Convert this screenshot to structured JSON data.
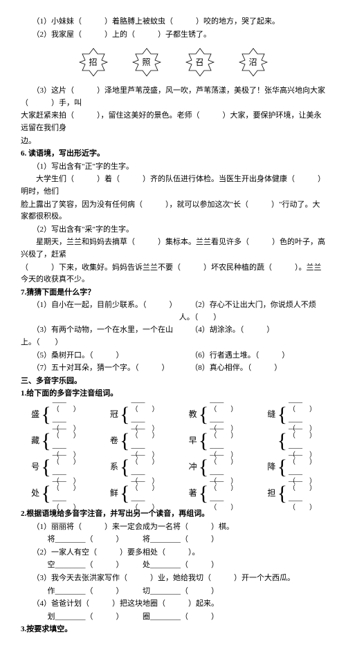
{
  "top_lines": [
    "（1）小妹妹（　　　）着胳膊上被蚊虫（　　　）咬的地方，哭了起来。",
    "（2）我家屋（　　　）上的（　　　）子都生锈了。"
  ],
  "star_chars": [
    "招",
    "照",
    "召",
    "沼"
  ],
  "q3_lines": [
    "（3）这片（　　　）泽地里芦苇茂盛，风一吹，芦苇荡漾，美极了！张华高兴地向大家（　　　）手，叫",
    "大家赶紧来拍（　　　），留住这美好的景色。老师（　　　）大家，要保护环境，让美永远留在我们身",
    "边。"
  ],
  "q6_title": "6. 读语境，写出形近字。",
  "q6_lines": [
    "（1）写出含有\"正\"字的生字。",
    "　　大学生们（　　　）着（　　　）齐的队伍进行体检。当医生开出身体健康（　　　）明时，他们",
    "脸上露出了笑容，因为没有任何病（　　　），就可以参加这次\"长（　　　）\"行动了。大家都很积极。",
    "（2）写出含有\"采\"字的生字。",
    "　　星期天，兰兰和妈妈去摘草（　　　）集标本。兰兰看见许多（　　　）色的叶子，高兴极了，赶紧",
    "（　　　）下来，收集好。妈妈告诉兰兰不要（　　　）坏农民种植的蔬（　　　）。兰兰今天的收获真不少。"
  ],
  "q7_title": "7.猜猜下面是什么字？",
  "q7_items": [
    [
      "（1）自小在一起，目前少联系。（　　　）",
      "（2）存心不让出大门，你说烦人不烦人。（　　）"
    ],
    [
      "（3）有两个动物，一个在水里，一个在山上。（　　）",
      "（4）胡涂涂。（　　　）"
    ],
    [
      "（5）桑树开口。（　　　）",
      "（6）行者遇土堆。（　　　）"
    ],
    [
      "（7）五十对耳朵，猜一个字。（　　　）",
      "（8）真心相伴。（　　　）"
    ]
  ],
  "sec3_title": "三、多音字乐园。",
  "s3q1_title": "1.给下面的多音字注音组词。",
  "brace_rows": [
    [
      [
        "盛"
      ],
      [
        "冠"
      ],
      [
        "教"
      ],
      [
        "缝"
      ]
    ],
    [
      [
        "藏"
      ],
      [
        "卷"
      ],
      [
        "早"
      ],
      [
        ""
      ]
    ],
    [
      [
        "号"
      ],
      [
        "系"
      ],
      [
        "冲"
      ],
      [
        "降"
      ]
    ],
    [
      [
        "处"
      ],
      [
        "鲜"
      ],
      [
        "著"
      ],
      [
        "担"
      ]
    ]
  ],
  "s3q2_title": "2.根据语境给多音字注音，并写出另一个读音，再组词。",
  "s3q2_lines": [
    "（1）丽丽将（　　　）来一定会成为一名将（　　　）棋。",
    "　　将________（　　　）　　　将________（　　　）",
    "（2）一家人有空（　　　）要多相处（　　　）。",
    "　　空________（　　　）　　　处________（　　　）",
    "（3）我今天去张洪家写作（　　　）业，她给我切（　　　）开一个大西瓜。",
    "　　作________（　　　）　　　切________（　　　）",
    "（4）爸爸计划（　　　）把这块地圈（　　　）起来。",
    "　　划________（　　　）　　　圈________（　　　）"
  ],
  "s3q3_title": "3.按要求填空。"
}
